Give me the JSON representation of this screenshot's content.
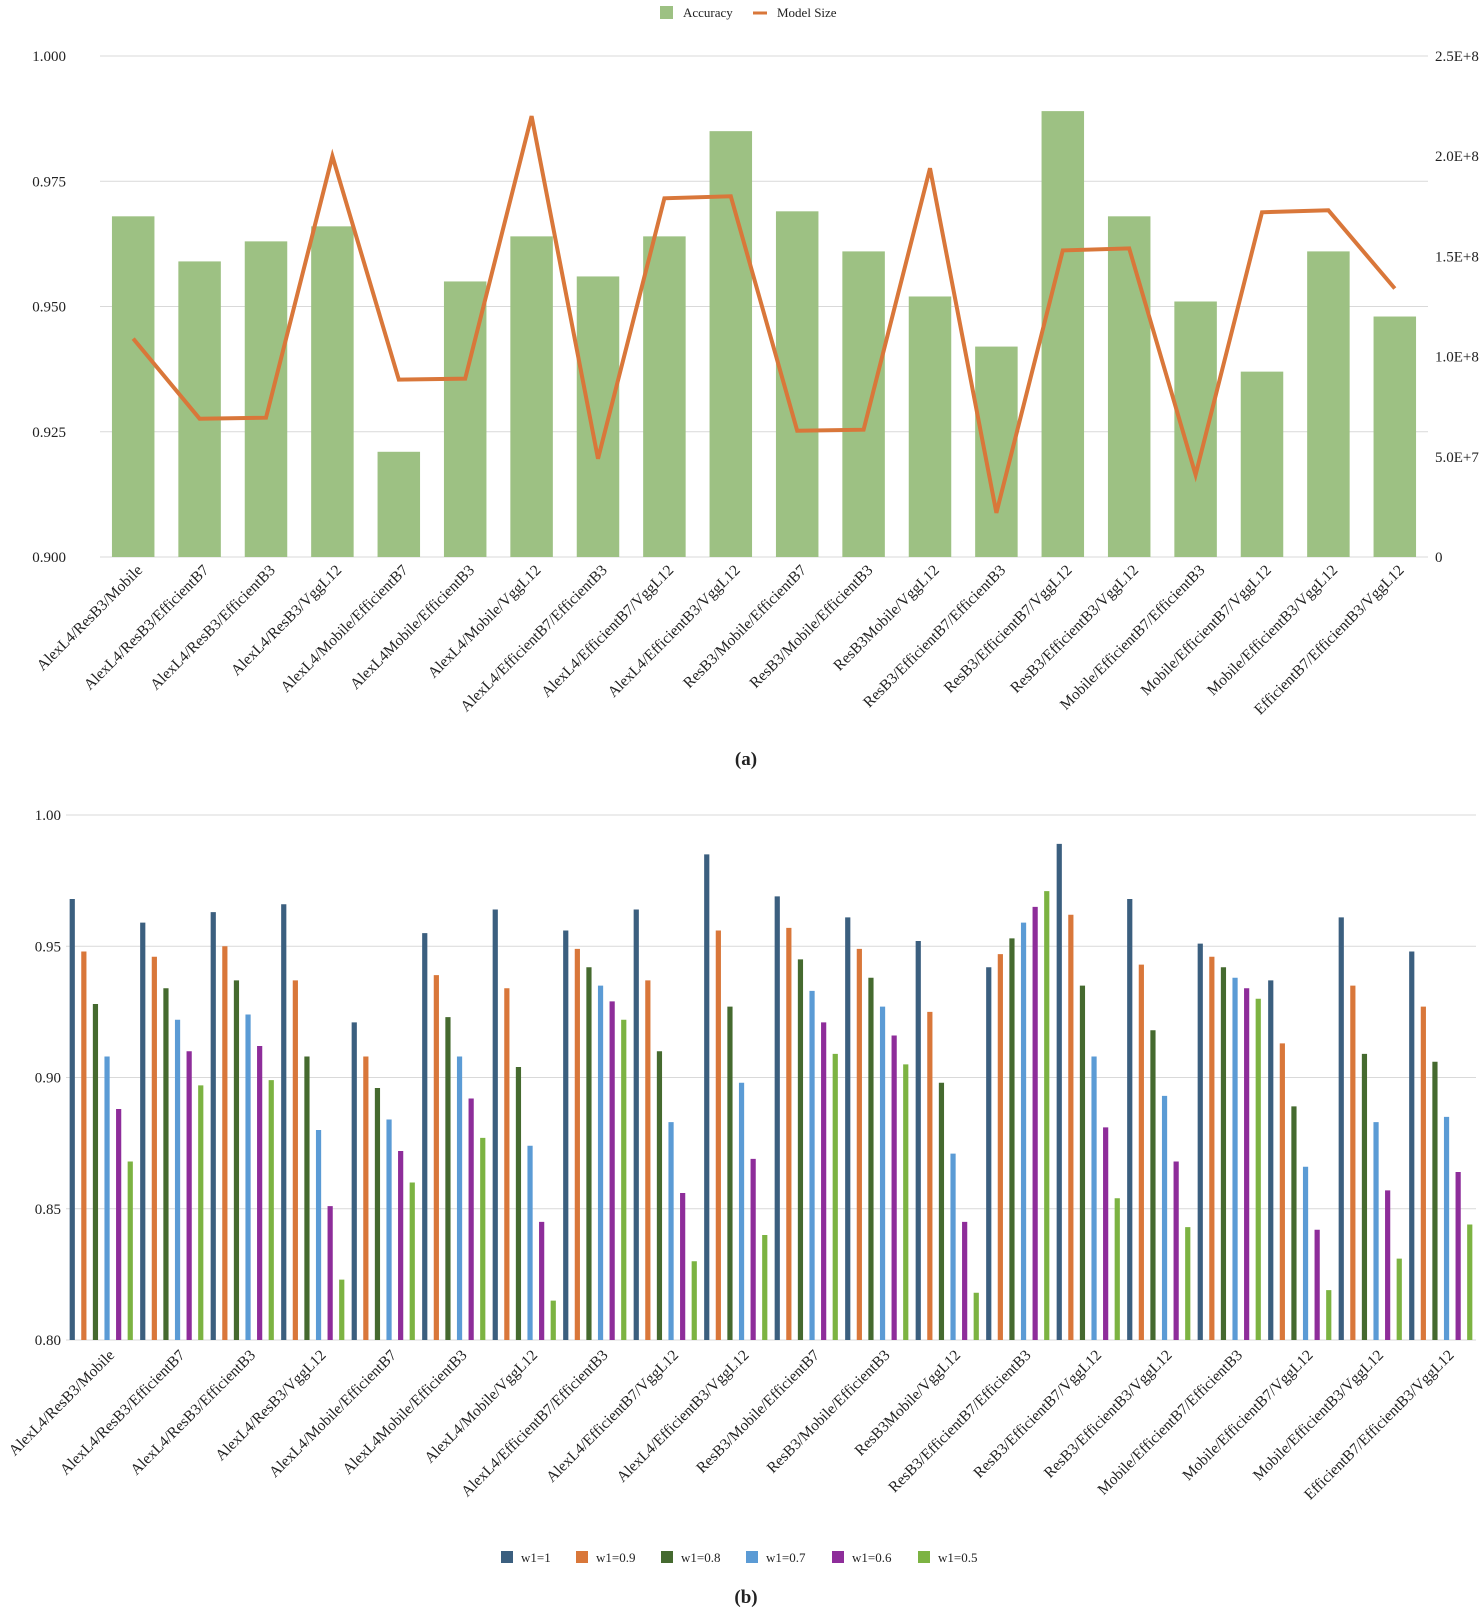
{
  "figure_labels": {
    "a": "(a)",
    "b": "(b)"
  },
  "chart_data": [
    {
      "id": "a",
      "type": "bar",
      "title": "",
      "xlabel": "",
      "ylabel": "",
      "categories": [
        "AlexL4/ResB3/Mobile",
        "AlexL4/ResB3/EfficientB7",
        "AlexL4/ResB3/EfficientB3",
        "AlexL4/ResB3/VggL12",
        "AlexL4/Mobile/EfficientB7",
        "AlexL4Mobile/EfficientB3",
        "AlexL4/Mobile/VggL12",
        "AlexL4/EfficientB7/EfficientB3",
        "AlexL4/EfficientB7/VggL12",
        "AlexL4/EfficientB3/VggL12",
        "ResB3/Mobile/EfficientB7",
        "ResB3/Mobile/EfficientB3",
        "ResB3Mobile/VggL12",
        "ResB3/EfficientB7/EfficientB3",
        "ResB3/EfficientB7/VggL12",
        "ResB3/EfficientB3/VggL12",
        "Mobile/EfficientB7/EfficientB3",
        "Mobile/EfficientB7/VggL12",
        "Mobile/EfficientB3/VggL12",
        "EfficientB7/EfficientB3/VggL12"
      ],
      "series": [
        {
          "name": "Accuracy",
          "kind": "bar",
          "axis": "left",
          "color": "#9dc183",
          "values": [
            0.968,
            0.959,
            0.963,
            0.966,
            0.921,
            0.955,
            0.964,
            0.956,
            0.964,
            0.985,
            0.969,
            0.961,
            0.952,
            0.942,
            0.989,
            0.968,
            0.951,
            0.937,
            0.961,
            0.948
          ]
        },
        {
          "name": "Model Size",
          "kind": "line",
          "axis": "right",
          "color": "#d9773a",
          "values": [
            109000000,
            69000000,
            69500000,
            200000000,
            88500000,
            89000000,
            220000000,
            49000000,
            179000000,
            180000000,
            63000000,
            63500000,
            194000000,
            22000000,
            153000000,
            154000000,
            41000000,
            172000000,
            173000000,
            134000000
          ]
        }
      ],
      "ylim": [
        0.9,
        1.0
      ],
      "yticks": [
        0.9,
        0.925,
        0.95,
        0.975,
        1.0
      ],
      "ytick_labels": [
        "0.900",
        "0.925",
        "0.950",
        "0.975",
        "1.000"
      ],
      "y2lim": [
        0,
        250000000
      ],
      "y2ticks": [
        0,
        50000000,
        100000000,
        150000000,
        200000000,
        250000000
      ],
      "y2tick_labels": [
        "0",
        "5.0E+7",
        "1.0E+8",
        "1.5E+8",
        "2.0E+8",
        "2.5E+8"
      ],
      "grid": true,
      "legend": "top-center"
    },
    {
      "id": "b",
      "type": "bar",
      "title": "",
      "xlabel": "",
      "ylabel": "",
      "categories": [
        "AlexL4/ResB3/Mobile",
        "AlexL4/ResB3/EfficientB7",
        "AlexL4/ResB3/EfficientB3",
        "AlexL4/ResB3/VggL12",
        "AlexL4/Mobile/EfficientB7",
        "AlexL4Mobile/EfficientB3",
        "AlexL4/Mobile/VggL12",
        "AlexL4/EfficientB7/EfficientB3",
        "AlexL4/EfficientB7/VggL12",
        "AlexL4/EfficientB3/VggL12",
        "ResB3/Mobile/EfficientB7",
        "ResB3/Mobile/EfficientB3",
        "ResB3Mobile/VggL12",
        "ResB3/EfficientB7/EfficientB3",
        "ResB3/EfficientB7/VggL12",
        "ResB3/EfficientB3/VggL12",
        "Mobile/EfficientB7/EfficientB3",
        "Mobile/EfficientB7/VggL12",
        "Mobile/EfficientB3/VggL12",
        "EfficientB7/EfficientB3/VggL12"
      ],
      "series": [
        {
          "name": "w1=1",
          "color": "#3b5f7f",
          "values": [
            0.968,
            0.959,
            0.963,
            0.966,
            0.921,
            0.955,
            0.964,
            0.956,
            0.964,
            0.985,
            0.969,
            0.961,
            0.952,
            0.942,
            0.989,
            0.968,
            0.951,
            0.937,
            0.961,
            0.948
          ]
        },
        {
          "name": "w1=0.9",
          "color": "#d9773a",
          "values": [
            0.948,
            0.946,
            0.95,
            0.937,
            0.908,
            0.939,
            0.934,
            0.949,
            0.937,
            0.956,
            0.957,
            0.949,
            0.925,
            0.947,
            0.962,
            0.943,
            0.946,
            0.913,
            0.935,
            0.927
          ]
        },
        {
          "name": "w1=0.8",
          "color": "#456a2f",
          "values": [
            0.928,
            0.934,
            0.937,
            0.908,
            0.896,
            0.923,
            0.904,
            0.942,
            0.91,
            0.927,
            0.945,
            0.938,
            0.898,
            0.953,
            0.935,
            0.918,
            0.942,
            0.889,
            0.909,
            0.906
          ]
        },
        {
          "name": "w1=0.7",
          "color": "#5b9bd5",
          "values": [
            0.908,
            0.922,
            0.924,
            0.88,
            0.884,
            0.908,
            0.874,
            0.935,
            0.883,
            0.898,
            0.933,
            0.927,
            0.871,
            0.959,
            0.908,
            0.893,
            0.938,
            0.866,
            0.883,
            0.885
          ]
        },
        {
          "name": "w1=0.6",
          "color": "#8e2d9a",
          "values": [
            0.888,
            0.91,
            0.912,
            0.851,
            0.872,
            0.892,
            0.845,
            0.929,
            0.856,
            0.869,
            0.921,
            0.916,
            0.845,
            0.965,
            0.881,
            0.868,
            0.934,
            0.842,
            0.857,
            0.864
          ]
        },
        {
          "name": "w1=0.5",
          "color": "#7cb342",
          "values": [
            0.868,
            0.897,
            0.899,
            0.823,
            0.86,
            0.877,
            0.815,
            0.922,
            0.83,
            0.84,
            0.909,
            0.905,
            0.818,
            0.971,
            0.854,
            0.843,
            0.93,
            0.819,
            0.831,
            0.844
          ]
        }
      ],
      "ylim": [
        0.8,
        1.0
      ],
      "yticks": [
        0.8,
        0.85,
        0.9,
        0.95,
        1.0
      ],
      "ytick_labels": [
        "0.80",
        "0.85",
        "0.90",
        "0.95",
        "1.00"
      ],
      "grid": true,
      "legend": "bottom-center"
    }
  ]
}
